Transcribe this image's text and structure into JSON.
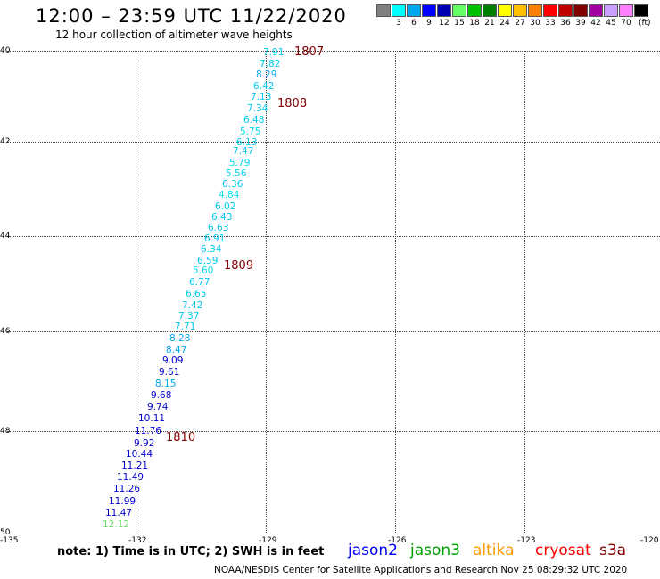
{
  "header": {
    "title": "12:00 – 23:59 UTC 11/22/2020",
    "subtitle": "12 hour collection of altimeter wave heights"
  },
  "colorbar": {
    "unit": "(ft)",
    "entries": [
      {
        "label": "",
        "color": "#808080"
      },
      {
        "label": "3",
        "color": "#00ffff"
      },
      {
        "label": "6",
        "color": "#00a8f0"
      },
      {
        "label": "9",
        "color": "#0000ff"
      },
      {
        "label": "12",
        "color": "#0000b0"
      },
      {
        "label": "15",
        "color": "#66ff66"
      },
      {
        "label": "18",
        "color": "#00c000"
      },
      {
        "label": "21",
        "color": "#008000"
      },
      {
        "label": "24",
        "color": "#ffff00"
      },
      {
        "label": "27",
        "color": "#ffc000"
      },
      {
        "label": "30",
        "color": "#ff8000"
      },
      {
        "label": "33",
        "color": "#ff0000"
      },
      {
        "label": "36",
        "color": "#c00000"
      },
      {
        "label": "39",
        "color": "#800000"
      },
      {
        "label": "42",
        "color": "#a000a0"
      },
      {
        "label": "45",
        "color": "#c8a0ff"
      },
      {
        "label": "70",
        "color": "#ff80ff"
      },
      {
        "label": "",
        "color": "#000000"
      }
    ]
  },
  "axes": {
    "lat_labels": [
      "40",
      "42",
      "44",
      "46",
      "48",
      "50"
    ],
    "lon_labels": [
      "-135",
      "-132",
      "-129",
      "-126",
      "-123",
      "-120"
    ]
  },
  "observations": [
    {
      "value": "7.91",
      "color": "#00c8f0"
    },
    {
      "value": "7.82",
      "color": "#00c8f0"
    },
    {
      "value": "8.29",
      "color": "#00a8f0"
    },
    {
      "value": "6.42",
      "color": "#00c8f0"
    },
    {
      "value": "7.13",
      "color": "#00c8f0"
    },
    {
      "value": "7.34",
      "color": "#00c8f0"
    },
    {
      "value": "6.48",
      "color": "#00c8f0"
    },
    {
      "value": "5.75",
      "color": "#00d8f0"
    },
    {
      "value": "6.13",
      "color": "#00c8f0"
    },
    {
      "value": "7.47",
      "color": "#00c8f0"
    },
    {
      "value": "5.79",
      "color": "#00d8f0"
    },
    {
      "value": "5.56",
      "color": "#00d8f0"
    },
    {
      "value": "6.36",
      "color": "#00c8f0"
    },
    {
      "value": "4.84",
      "color": "#00e0f0"
    },
    {
      "value": "6.02",
      "color": "#00c8f0"
    },
    {
      "value": "6.43",
      "color": "#00c8f0"
    },
    {
      "value": "6.63",
      "color": "#00c8f0"
    },
    {
      "value": "6.91",
      "color": "#00c8f0"
    },
    {
      "value": "6.34",
      "color": "#00c8f0"
    },
    {
      "value": "6.59",
      "color": "#00c8f0"
    },
    {
      "value": "5.60",
      "color": "#00d8f0"
    },
    {
      "value": "6.77",
      "color": "#00c8f0"
    },
    {
      "value": "6.65",
      "color": "#00c8f0"
    },
    {
      "value": "7.42",
      "color": "#00c8f0"
    },
    {
      "value": "7.37",
      "color": "#00c8f0"
    },
    {
      "value": "7.71",
      "color": "#00c8f0"
    },
    {
      "value": "8.28",
      "color": "#00a8f0"
    },
    {
      "value": "8.47",
      "color": "#00a8f0"
    },
    {
      "value": "9.09",
      "color": "#0000d0"
    },
    {
      "value": "9.61",
      "color": "#0000d0"
    },
    {
      "value": "8.15",
      "color": "#00a8f0"
    },
    {
      "value": "9.68",
      "color": "#0000d0"
    },
    {
      "value": "9.74",
      "color": "#0000d0"
    },
    {
      "value": "10.11",
      "color": "#0000d0"
    },
    {
      "value": "11.76",
      "color": "#0000d0"
    },
    {
      "value": "9.92",
      "color": "#0000d0"
    },
    {
      "value": "10.44",
      "color": "#0000d0"
    },
    {
      "value": "11.21",
      "color": "#0000d0"
    },
    {
      "value": "11.49",
      "color": "#0000d0"
    },
    {
      "value": "11.26",
      "color": "#0000d0"
    },
    {
      "value": "11.99",
      "color": "#0000d0"
    },
    {
      "value": "11.47",
      "color": "#0000d0"
    },
    {
      "value": "12.12",
      "color": "#66e066"
    }
  ],
  "pass_labels": [
    {
      "text": "1807"
    },
    {
      "text": "1808"
    },
    {
      "text": "1809"
    },
    {
      "text": "1810"
    }
  ],
  "footer": {
    "note": "note:  1) Time is in UTC;  2) SWH is in feet",
    "satellites": [
      {
        "name": "jason2",
        "color": "#0000ff"
      },
      {
        "name": "jason3",
        "color": "#00a000"
      },
      {
        "name": "altika",
        "color": "#ff9900"
      },
      {
        "name": "cryosat",
        "color": "#ff0000"
      },
      {
        "name": "s3a",
        "color": "#800000"
      }
    ],
    "credit": "NOAA/NESDIS Center for Satellite Applications and Research    Nov 25 08:29:32 UTC 2020"
  }
}
